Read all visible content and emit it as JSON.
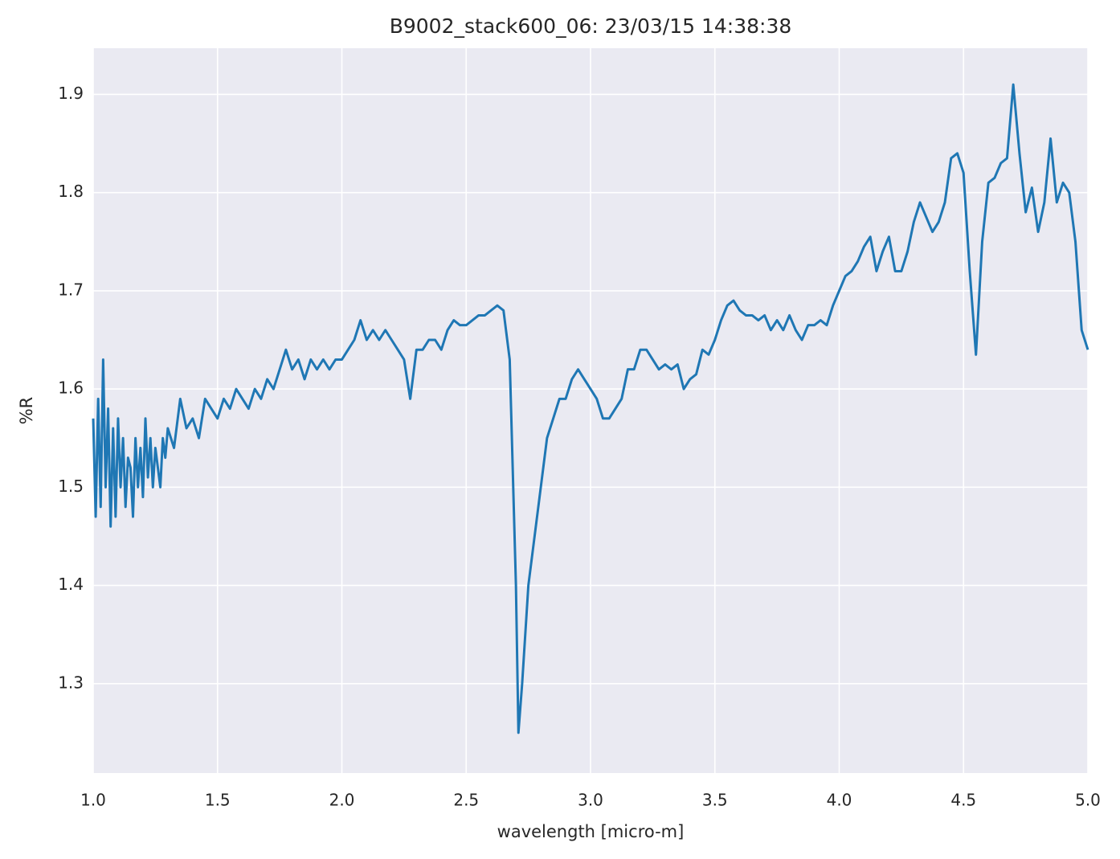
{
  "chart_data": {
    "type": "line",
    "title": "B9002_stack600_06:  23/03/15 14:38:38",
    "xlabel": "wavelength [micro-m]",
    "ylabel": "%R",
    "x": [
      1.0,
      1.01,
      1.02,
      1.03,
      1.04,
      1.05,
      1.06,
      1.07,
      1.08,
      1.09,
      1.1,
      1.11,
      1.12,
      1.13,
      1.14,
      1.15,
      1.16,
      1.17,
      1.18,
      1.19,
      1.2,
      1.21,
      1.22,
      1.23,
      1.24,
      1.25,
      1.26,
      1.27,
      1.28,
      1.29,
      1.3,
      1.325,
      1.35,
      1.375,
      1.4,
      1.425,
      1.45,
      1.475,
      1.5,
      1.525,
      1.55,
      1.575,
      1.6,
      1.625,
      1.65,
      1.675,
      1.7,
      1.725,
      1.75,
      1.775,
      1.8,
      1.825,
      1.85,
      1.875,
      1.9,
      1.925,
      1.95,
      1.975,
      2.0,
      2.025,
      2.05,
      2.075,
      2.1,
      2.125,
      2.15,
      2.175,
      2.2,
      2.225,
      2.25,
      2.275,
      2.3,
      2.325,
      2.35,
      2.375,
      2.4,
      2.425,
      2.45,
      2.475,
      2.5,
      2.525,
      2.55,
      2.575,
      2.6,
      2.625,
      2.65,
      2.675,
      2.7,
      2.71,
      2.725,
      2.75,
      2.775,
      2.8,
      2.825,
      2.85,
      2.875,
      2.9,
      2.925,
      2.95,
      2.975,
      3.0,
      3.025,
      3.05,
      3.075,
      3.1,
      3.125,
      3.15,
      3.175,
      3.2,
      3.225,
      3.25,
      3.275,
      3.3,
      3.325,
      3.35,
      3.375,
      3.4,
      3.425,
      3.45,
      3.475,
      3.5,
      3.525,
      3.55,
      3.575,
      3.6,
      3.625,
      3.65,
      3.675,
      3.7,
      3.725,
      3.75,
      3.775,
      3.8,
      3.825,
      3.85,
      3.875,
      3.9,
      3.925,
      3.95,
      3.975,
      4.0,
      4.025,
      4.05,
      4.075,
      4.1,
      4.125,
      4.15,
      4.175,
      4.2,
      4.225,
      4.25,
      4.275,
      4.3,
      4.325,
      4.35,
      4.375,
      4.4,
      4.425,
      4.45,
      4.475,
      4.5,
      4.525,
      4.55,
      4.575,
      4.6,
      4.625,
      4.65,
      4.675,
      4.7,
      4.725,
      4.75,
      4.775,
      4.8,
      4.825,
      4.85,
      4.875,
      4.9,
      4.925,
      4.95,
      4.975,
      5.0
    ],
    "series": [
      {
        "name": "%R",
        "color": "#1f77b4",
        "values": [
          1.57,
          1.47,
          1.59,
          1.48,
          1.63,
          1.5,
          1.58,
          1.46,
          1.56,
          1.47,
          1.57,
          1.5,
          1.55,
          1.48,
          1.53,
          1.52,
          1.47,
          1.55,
          1.5,
          1.54,
          1.49,
          1.57,
          1.51,
          1.55,
          1.5,
          1.54,
          1.52,
          1.5,
          1.55,
          1.53,
          1.56,
          1.54,
          1.59,
          1.56,
          1.57,
          1.55,
          1.59,
          1.58,
          1.57,
          1.59,
          1.58,
          1.6,
          1.59,
          1.58,
          1.6,
          1.59,
          1.61,
          1.6,
          1.62,
          1.64,
          1.62,
          1.63,
          1.61,
          1.63,
          1.62,
          1.63,
          1.62,
          1.63,
          1.63,
          1.64,
          1.65,
          1.67,
          1.65,
          1.66,
          1.65,
          1.66,
          1.65,
          1.64,
          1.63,
          1.59,
          1.64,
          1.64,
          1.65,
          1.65,
          1.64,
          1.66,
          1.67,
          1.665,
          1.665,
          1.67,
          1.675,
          1.675,
          1.68,
          1.685,
          1.68,
          1.63,
          1.4,
          1.25,
          1.3,
          1.4,
          1.45,
          1.5,
          1.55,
          1.57,
          1.59,
          1.59,
          1.61,
          1.62,
          1.61,
          1.6,
          1.59,
          1.57,
          1.57,
          1.58,
          1.59,
          1.62,
          1.62,
          1.64,
          1.64,
          1.63,
          1.62,
          1.625,
          1.62,
          1.625,
          1.6,
          1.61,
          1.615,
          1.64,
          1.635,
          1.65,
          1.67,
          1.685,
          1.69,
          1.68,
          1.675,
          1.675,
          1.67,
          1.675,
          1.66,
          1.67,
          1.66,
          1.675,
          1.66,
          1.65,
          1.665,
          1.665,
          1.67,
          1.665,
          1.685,
          1.7,
          1.715,
          1.72,
          1.73,
          1.745,
          1.755,
          1.72,
          1.74,
          1.755,
          1.72,
          1.72,
          1.74,
          1.77,
          1.79,
          1.775,
          1.76,
          1.77,
          1.79,
          1.835,
          1.84,
          1.82,
          1.72,
          1.635,
          1.75,
          1.81,
          1.815,
          1.83,
          1.835,
          1.91,
          1.84,
          1.78,
          1.805,
          1.76,
          1.79,
          1.855,
          1.79,
          1.81,
          1.8,
          1.75,
          1.66,
          1.64
        ]
      }
    ],
    "xlim": [
      1,
      5
    ],
    "xticks": [
      {
        "value": 1,
        "label": "1.0"
      },
      1.5,
      {
        "value": 2,
        "label": "2.0"
      },
      2.5,
      {
        "value": 3,
        "label": "3.0"
      },
      3.5,
      {
        "value": 4,
        "label": "4.0"
      },
      4.5,
      {
        "value": 5,
        "label": "5.0"
      }
    ],
    "ylim": [
      1.209,
      1.947
    ],
    "yticks": [
      1.3,
      1.4,
      1.5,
      1.6,
      1.7,
      1.8,
      1.9
    ],
    "grid": true
  }
}
